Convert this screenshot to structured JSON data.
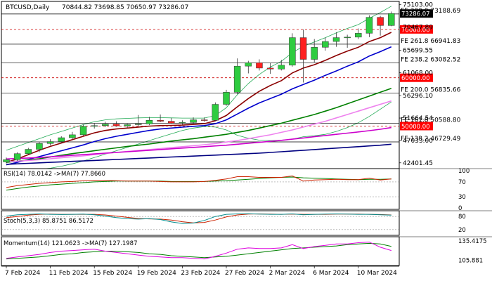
{
  "chart_data": {
    "type": "candlestick",
    "symbol_label": "BTCUSD,Daily",
    "ohlc_label": "70844.82 73698.85 70650.97 73286.07",
    "price_axis": {
      "range": [
        41500,
        75500
      ],
      "ticks": [
        "75103.00",
        "70467.89",
        "65699.55",
        "61068.00",
        "56296.10",
        "51664.54",
        "47033.00",
        "42401.45"
      ],
      "current_price_tag": "73286.07"
    },
    "date_axis": {
      "ticks": [
        {
          "index": 0,
          "label": "7 Feb 2024"
        },
        {
          "index": 4,
          "label": "11 Feb 2024"
        },
        {
          "index": 8,
          "label": "15 Feb 2024"
        },
        {
          "index": 12,
          "label": "19 Feb 2024"
        },
        {
          "index": 16,
          "label": "23 Feb 2024"
        },
        {
          "index": 20,
          "label": "27 Feb 2024"
        },
        {
          "index": 24,
          "label": "2 Mar 2024"
        },
        {
          "index": 28,
          "label": "6 Mar 2024"
        },
        {
          "index": 32,
          "label": "10 Mar 2024"
        }
      ]
    },
    "candles": [
      [
        42600,
        43500,
        42300,
        43050
      ],
      [
        43050,
        44600,
        42800,
        44300
      ],
      [
        44300,
        45500,
        44100,
        45200
      ],
      [
        45200,
        46700,
        44600,
        46400
      ],
      [
        46400,
        47300,
        46000,
        46800
      ],
      [
        46800,
        47900,
        46600,
        47600
      ],
      [
        47600,
        48800,
        47300,
        48200
      ],
      [
        48200,
        50300,
        48000,
        49950
      ],
      [
        49950,
        50600,
        49500,
        50100
      ],
      [
        50100,
        50900,
        49800,
        50400
      ],
      [
        50400,
        51000,
        49900,
        50050
      ],
      [
        50050,
        50500,
        49700,
        50300
      ],
      [
        50300,
        52300,
        50000,
        50450
      ],
      [
        50450,
        51900,
        50200,
        51200
      ],
      [
        51200,
        52400,
        50800,
        51000
      ],
      [
        51000,
        51700,
        50500,
        50600
      ],
      [
        50600,
        51200,
        50300,
        50750
      ],
      [
        50750,
        51800,
        50400,
        51300
      ],
      [
        51300,
        51800,
        50900,
        51200
      ],
      [
        51200,
        54900,
        51000,
        54500
      ],
      [
        54500,
        57500,
        54200,
        57000
      ],
      [
        57000,
        64000,
        56600,
        62400
      ],
      [
        62400,
        63500,
        60900,
        63100
      ],
      [
        63100,
        63800,
        61500,
        62000
      ],
      [
        62000,
        63000,
        60800,
        61800
      ],
      [
        61800,
        63700,
        61500,
        62600
      ],
      [
        62600,
        69200,
        62300,
        68300
      ],
      [
        68300,
        70000,
        59000,
        63800
      ],
      [
        63800,
        68000,
        63200,
        66300
      ],
      [
        66300,
        68300,
        65600,
        67500
      ],
      [
        67500,
        69400,
        66400,
        68300
      ],
      [
        68300,
        68900,
        66200,
        68400
      ],
      [
        68400,
        70200,
        68000,
        69200
      ],
      [
        69200,
        72900,
        68400,
        72500
      ],
      [
        72500,
        72800,
        68700,
        70800
      ],
      [
        70800,
        73700,
        70650,
        73286
      ]
    ],
    "moving_averages": [
      {
        "color": "#8b0000",
        "values": [
          42500,
          43200,
          44100,
          45000,
          45800,
          46500,
          47200,
          47900,
          48600,
          49100,
          49400,
          49600,
          49800,
          50000,
          50100,
          50150,
          50200,
          50350,
          50500,
          51100,
          52200,
          54000,
          55700,
          57200,
          58400,
          59400,
          61000,
          62000,
          62700,
          63600,
          64600,
          65500,
          66300,
          67500,
          68300,
          69400
        ]
      },
      {
        "color": "#0000cd",
        "values": [
          42000,
          42500,
          43100,
          43700,
          44300,
          44900,
          45500,
          46100,
          46800,
          47400,
          47900,
          48300,
          48700,
          49100,
          49400,
          49600,
          49800,
          49950,
          50100,
          50500,
          51300,
          52500,
          53700,
          54800,
          55700,
          56600,
          57700,
          58600,
          59500,
          60500,
          61400,
          62400,
          63300,
          64500,
          65400,
          66400
        ]
      },
      {
        "color": "#008000",
        "values": [
          42500,
          42750,
          43000,
          43250,
          43600,
          43950,
          44300,
          44600,
          44900,
          45200,
          45500,
          45800,
          46050,
          46300,
          46600,
          46900,
          47150,
          47400,
          47700,
          48000,
          48300,
          48700,
          49100,
          49600,
          50100,
          50600,
          51200,
          51800,
          52400,
          53100,
          53800,
          54600,
          55400,
          56200,
          57000,
          57800
        ]
      },
      {
        "color": "#ee82ee",
        "values": [
          42650,
          42750,
          42900,
          43050,
          43250,
          43450,
          43650,
          43850,
          44100,
          44350,
          44550,
          44750,
          44950,
          45150,
          45350,
          45550,
          45750,
          45950,
          46150,
          46400,
          46700,
          47000,
          47400,
          47800,
          48200,
          48700,
          49200,
          49800,
          50400,
          51000,
          51700,
          52400,
          53100,
          53800,
          54500,
          55200
        ]
      },
      {
        "color": "#cc00cc",
        "values": [
          43200,
          43300,
          43400,
          43500,
          43650,
          43800,
          43950,
          44100,
          44250,
          44400,
          44550,
          44700,
          44850,
          45000,
          45150,
          45300,
          45450,
          45600,
          45750,
          45900,
          46050,
          46250,
          46450,
          46650,
          46850,
          47050,
          47300,
          47550,
          47800,
          48050,
          48300,
          48550,
          48800,
          49050,
          49350,
          49700
        ]
      },
      {
        "color": "#000080",
        "values": [
          42100,
          42200,
          42300,
          42400,
          42500,
          42600,
          42700,
          42800,
          42900,
          43000,
          43100,
          43200,
          43300,
          43400,
          43500,
          43600,
          43700,
          43800,
          43900,
          44000,
          44100,
          44200,
          44300,
          44400,
          44550,
          44700,
          44850,
          45000,
          45150,
          45300,
          45450,
          45600,
          45750,
          45900,
          46050,
          46250
        ]
      }
    ],
    "bollinger_bands": {
      "color": "#22aa55",
      "upper": [
        45000,
        45800,
        46600,
        47400,
        48200,
        48900,
        49600,
        50300,
        50900,
        51300,
        51500,
        51600,
        51700,
        51750,
        51750,
        51700,
        51650,
        51650,
        51650,
        52200,
        53800,
        56500,
        58800,
        60700,
        62200,
        63400,
        65200,
        66500,
        67400,
        68300,
        69300,
        70200,
        71000,
        72300,
        73500,
        74800
      ],
      "lower": [
        40600,
        40700,
        40900,
        41100,
        41300,
        41700,
        42200,
        42800,
        43500,
        44200,
        44900,
        45600,
        46300,
        47000,
        47700,
        48400,
        49100,
        49600,
        49900,
        49800,
        49200,
        48100,
        47500,
        47100,
        47000,
        47100,
        47300,
        47800,
        48000,
        48300,
        48900,
        49700,
        50700,
        52000,
        53500,
        55000
      ]
    },
    "levels": [
      {
        "value": 73188.69,
        "label": "FE 300.0 73188.69",
        "style": "solid"
      },
      {
        "value": 70000,
        "label": "70000.00",
        "style": "dashed",
        "tag": true
      },
      {
        "value": 66941.83,
        "label": "FE 261.8 66941.83",
        "style": "solid"
      },
      {
        "value": 63082.52,
        "label": "FE 238.2 63082.52",
        "style": "solid"
      },
      {
        "value": 60000,
        "label": "60000.00",
        "style": "dashed",
        "tag": true
      },
      {
        "value": 56835.66,
        "label": "FE 200.0 56835.66",
        "style": "solid"
      },
      {
        "value": 50588.8,
        "label": "FE 161.8 50588.80",
        "style": "solid"
      },
      {
        "value": 50000,
        "label": "50000.00",
        "style": "dashed",
        "tag": true
      },
      {
        "value": 46729.49,
        "label": "FE 138.2 46729.49",
        "style": "solid"
      }
    ],
    "rsi": {
      "label": "RSI(14) 78.0142  ->MA(7) 77.8660",
      "range": [
        0,
        100
      ],
      "ticks": [
        "100",
        "70",
        "30",
        "0"
      ],
      "levels": [
        70,
        30
      ],
      "main_color": "#cc2200",
      "ma_color": "#008000",
      "values": [
        55,
        60,
        63,
        66,
        68,
        70,
        71,
        73,
        74,
        74,
        73,
        72,
        72,
        72,
        71,
        70,
        70,
        70,
        71,
        74,
        78,
        84,
        84,
        82,
        82,
        82,
        86,
        72,
        75,
        76,
        77,
        76,
        76,
        80,
        75,
        78
      ],
      "ma": [
        48,
        52,
        56,
        59,
        62,
        64,
        66,
        68,
        70,
        71,
        72,
        72,
        72,
        72,
        72,
        71,
        71,
        71,
        71,
        72,
        73,
        75,
        77,
        79,
        81,
        82,
        83,
        81,
        80,
        79,
        78,
        77,
        76,
        77,
        77,
        77.9
      ]
    },
    "stochastic": {
      "label": "Stoch(5,3,3) 85.8751 86.5172",
      "range": [
        0,
        100
      ],
      "ticks": [
        "80",
        "20"
      ],
      "levels": [
        80,
        20
      ],
      "main_color": "#008b8b",
      "signal_color": "#cc2200",
      "values": [
        82,
        88,
        90,
        92,
        90,
        89,
        90,
        91,
        88,
        82,
        75,
        70,
        68,
        70,
        66,
        55,
        48,
        50,
        62,
        80,
        90,
        92,
        93,
        91,
        90,
        90,
        92,
        88,
        90,
        91,
        92,
        91,
        90,
        90,
        88,
        86
      ],
      "signal": [
        75,
        80,
        86,
        90,
        91,
        90,
        90,
        90,
        90,
        87,
        82,
        76,
        71,
        69,
        68,
        64,
        56,
        51,
        53,
        64,
        78,
        87,
        91,
        92,
        91,
        90,
        91,
        90,
        90,
        90,
        91,
        91,
        91,
        90,
        89,
        87
      ]
    },
    "momentum": {
      "label": "Momentum(14) 121.0623  ->MA(7) 127.1987",
      "range": [
        100,
        140
      ],
      "ticks": [
        "135.4175",
        "105.881"
      ],
      "main_color": "#dd00dd",
      "ma_color": "#008000",
      "values": [
        109,
        111,
        113,
        115,
        118,
        120,
        121,
        122,
        123,
        120,
        118,
        116,
        114,
        112,
        111,
        110,
        110,
        109,
        108,
        112,
        117,
        123,
        125,
        124,
        124,
        125,
        130,
        124,
        127,
        129,
        131,
        131,
        133,
        134,
        126,
        121
      ],
      "ma": [
        108,
        109,
        110,
        111,
        113,
        115,
        116,
        118,
        119,
        120,
        120,
        119,
        118,
        116,
        115,
        113,
        112,
        111,
        110,
        111,
        112,
        114,
        116,
        118,
        120,
        122,
        124,
        125,
        126,
        127,
        128,
        130,
        131,
        132,
        131,
        127.2
      ]
    }
  }
}
